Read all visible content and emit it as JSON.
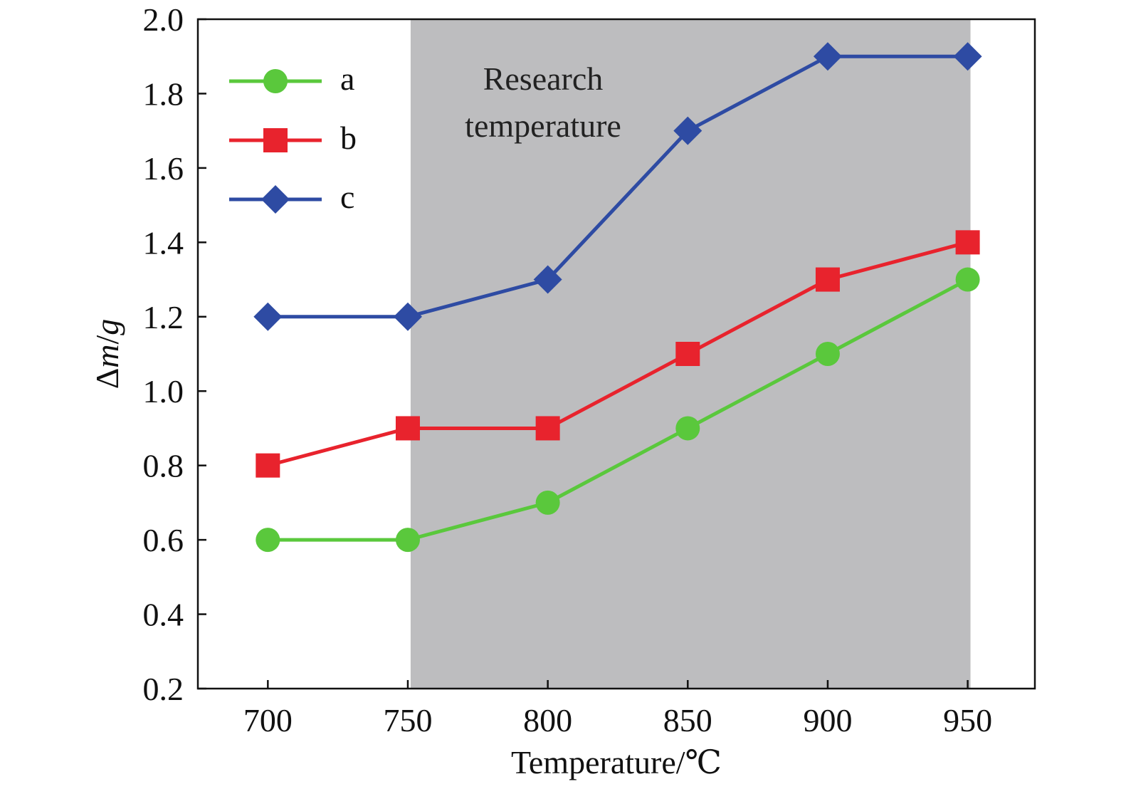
{
  "chart_data": {
    "type": "line",
    "x": [
      700,
      750,
      800,
      850,
      900,
      950
    ],
    "series": [
      {
        "name": "a",
        "values": [
          0.6,
          0.6,
          0.7,
          0.9,
          1.1,
          1.3
        ],
        "color": "#5ac83c",
        "marker": "circle"
      },
      {
        "name": "b",
        "values": [
          0.8,
          0.9,
          0.9,
          1.1,
          1.3,
          1.4
        ],
        "color": "#e8232d",
        "marker": "square"
      },
      {
        "name": "c",
        "values": [
          1.2,
          1.2,
          1.3,
          1.7,
          1.9,
          1.9
        ],
        "color": "#2e4ba3",
        "marker": "diamond"
      }
    ],
    "xlabel": "Temperature/℃",
    "ylabel_prefix": "Δ",
    "ylabel_var1": "m",
    "ylabel_sep": "/",
    "ylabel_var2": "g",
    "xlim": [
      675,
      974
    ],
    "ylim": [
      0.2,
      2.0
    ],
    "xticks": [
      700,
      750,
      800,
      850,
      900,
      950
    ],
    "yticks": [
      "0.2",
      "0.4",
      "0.6",
      "0.8",
      "1.0",
      "1.2",
      "1.4",
      "1.6",
      "1.8",
      "2.0"
    ],
    "shaded_region": {
      "x_start": 751,
      "x_end": 951,
      "color": "#bdbdbf",
      "label_line1": "Research",
      "label_line2": "temperature"
    },
    "legend_position": "top-left",
    "grid": false
  }
}
